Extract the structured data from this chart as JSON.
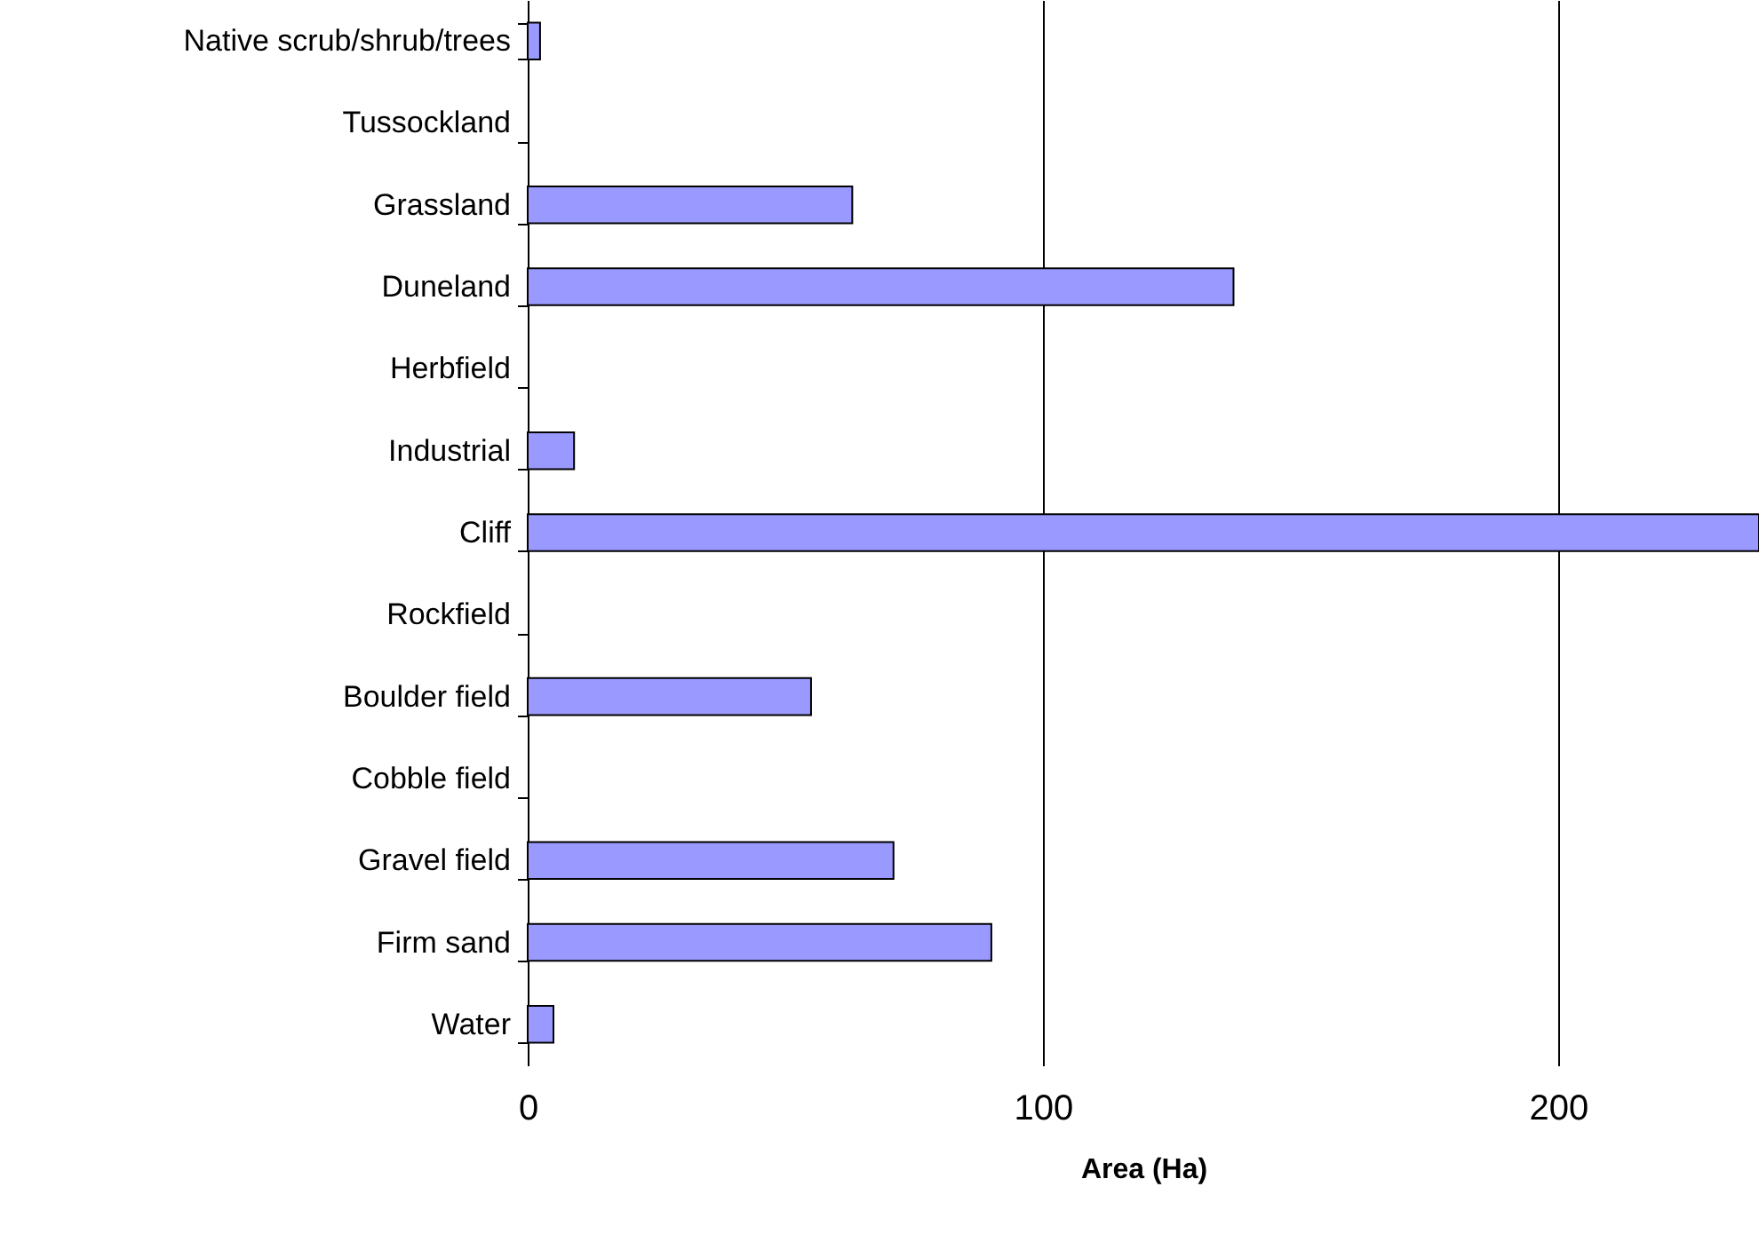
{
  "chart_data": {
    "type": "bar",
    "orientation": "horizontal",
    "xlabel": "Area (Ha)",
    "categories": [
      "Native scrub/shrub/trees",
      "Tussockland",
      "Grassland",
      "Duneland",
      "Herbfield",
      "Industrial",
      "Cliff",
      "Rockfield",
      "Boulder field",
      "Cobble  field",
      "Gravel field",
      "Firm sand",
      "Water"
    ],
    "values": [
      2.4,
      null,
      63,
      137,
      null,
      9,
      239,
      null,
      55,
      null,
      71,
      90,
      5
    ],
    "color": "#9999ff",
    "xlim": [
      0,
      239
    ],
    "xticks": [
      0,
      100,
      200
    ],
    "grid": "x"
  }
}
